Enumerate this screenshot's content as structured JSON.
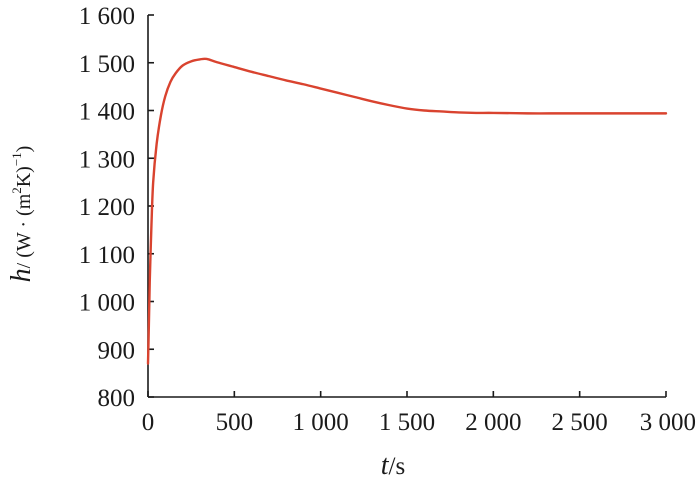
{
  "chart_data": {
    "type": "line",
    "title": "",
    "xlabel": {
      "var": "t",
      "unit": "/s"
    },
    "ylabel": {
      "var": "h",
      "unit": "/ (W · (m",
      "sup1": "2",
      "unit2": "K)",
      "sup2": "−1",
      "unit3": ")"
    },
    "xlim": [
      0,
      3000
    ],
    "ylim": [
      800,
      1600
    ],
    "x_ticks": [
      0,
      500,
      1000,
      1500,
      2000,
      2500,
      3000
    ],
    "x_tick_labels": [
      "0",
      "500",
      "1 000",
      "1 500",
      "2 000",
      "2 500",
      "3 000"
    ],
    "y_ticks": [
      800,
      900,
      1000,
      1100,
      1200,
      1300,
      1400,
      1500,
      1600
    ],
    "y_tick_labels": [
      "800",
      "900",
      "1 000",
      "1 100",
      "1 200",
      "1 300",
      "1 400",
      "1 500",
      "1 600"
    ],
    "grid": false,
    "series": [
      {
        "color": "#d9432f",
        "x": [
          0,
          5,
          10,
          20,
          30,
          50,
          75,
          100,
          130,
          160,
          200,
          250,
          300,
          340,
          400,
          500,
          600,
          700,
          800,
          900,
          1000,
          1100,
          1200,
          1300,
          1400,
          1500,
          1600,
          1700,
          1800,
          1900,
          2000,
          2200,
          2400,
          2600,
          2800,
          3000
        ],
        "y": [
          870,
          950,
          1040,
          1160,
          1250,
          1330,
          1390,
          1430,
          1460,
          1478,
          1494,
          1503,
          1507,
          1508,
          1501,
          1491,
          1481,
          1472,
          1463,
          1455,
          1446,
          1437,
          1428,
          1419,
          1411,
          1404,
          1400,
          1398,
          1396,
          1395,
          1395,
          1394,
          1394,
          1394,
          1394,
          1394
        ]
      }
    ]
  }
}
